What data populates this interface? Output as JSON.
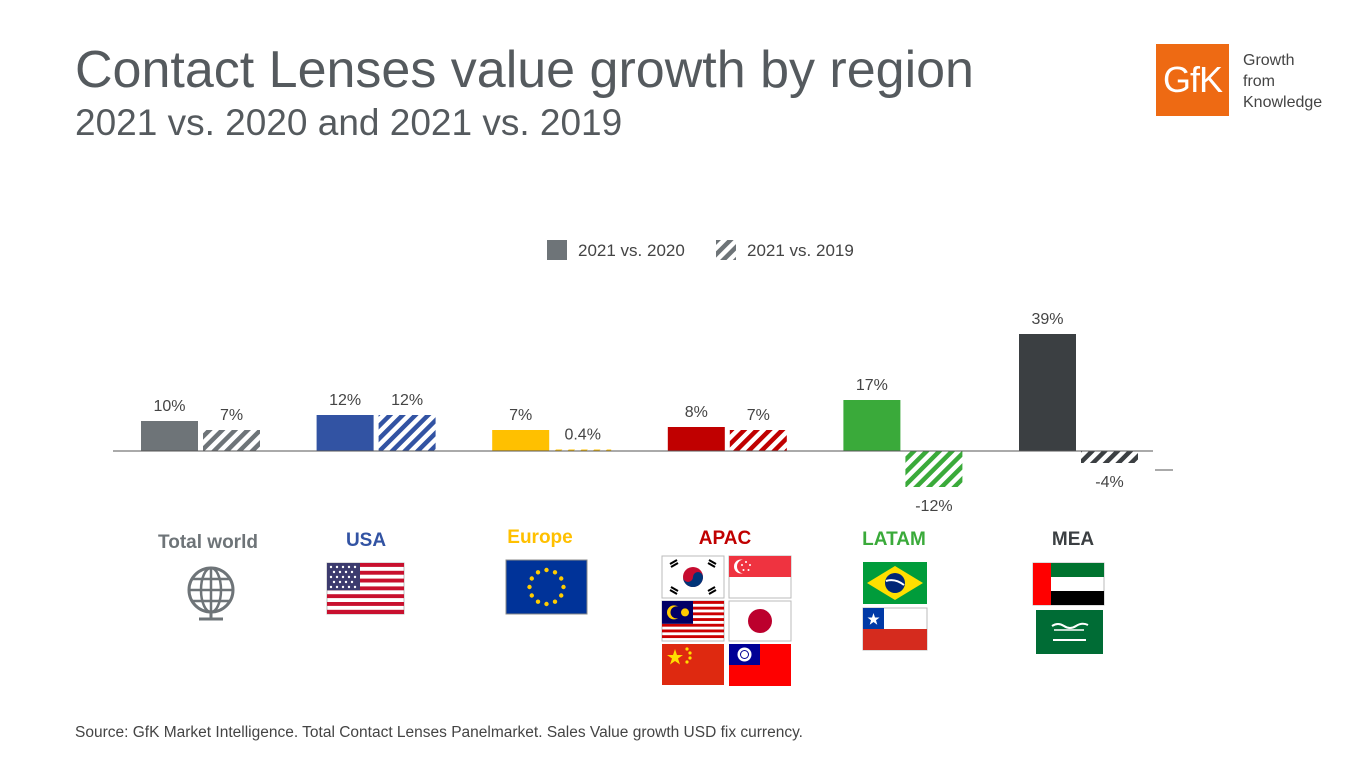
{
  "header": {
    "title": "Contact Lenses value growth by region",
    "subtitle": "2021 vs. 2020 and 2021 vs. 2019"
  },
  "logo": {
    "mark": "GfK",
    "tagline": [
      "Growth",
      "from",
      "Knowledge"
    ],
    "color": "#ee6a13"
  },
  "chart_data": {
    "type": "bar",
    "title": "Contact Lenses value growth by region",
    "subtitle": "2021 vs. 2020 and 2021 vs. 2019",
    "categories": [
      "Total world",
      "USA",
      "Europe",
      "APAC",
      "LATAM",
      "MEA"
    ],
    "category_colors": [
      "#6e7478",
      "#3253a3",
      "#ffc000",
      "#c00000",
      "#3aaa3a",
      "#3b3f42"
    ],
    "series": [
      {
        "name": "2021 vs. 2020",
        "style": "solid",
        "values": [
          10,
          12,
          7,
          8,
          17,
          39
        ],
        "labels": [
          "10%",
          "12%",
          "7%",
          "8%",
          "17%",
          "39%"
        ]
      },
      {
        "name": "2021 vs. 2019",
        "style": "hatched",
        "values": [
          7,
          12,
          0.4,
          7,
          -12,
          -4
        ],
        "labels": [
          "7%",
          "12%",
          "0.4%",
          "7%",
          "-12%",
          "-4%"
        ]
      }
    ],
    "ylim": [
      -20,
      45
    ],
    "legend_position": "top-center",
    "grid": false,
    "xlabel": "",
    "ylabel": ""
  },
  "source": "Source: GfK Market Intelligence. Total Contact Lenses Panelmarket. Sales Value growth USD fix currency."
}
